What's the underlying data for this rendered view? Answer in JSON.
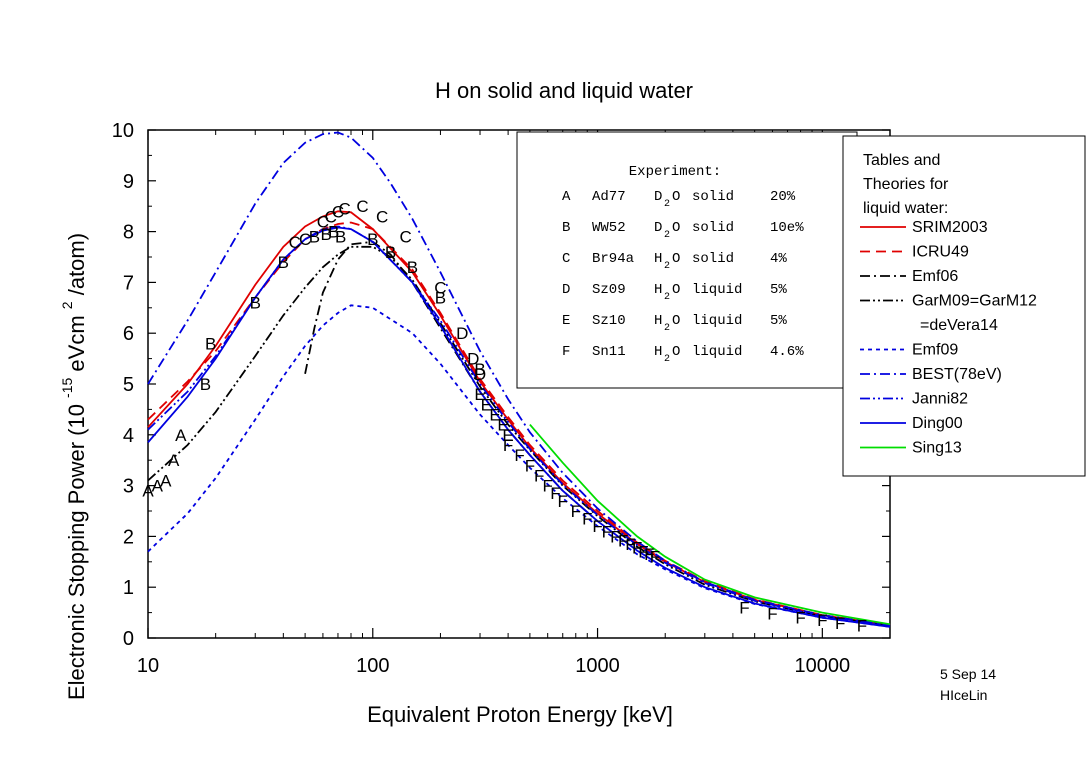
{
  "chart_data": {
    "type": "line",
    "title": "H on solid and liquid water",
    "xlabel": "Equivalent Proton Energy [keV]",
    "ylabel_main": "Electronic Stopping Power (10",
    "ylabel_exp": "-15",
    "ylabel_unit": "eVcm",
    "ylabel_exp2": "2",
    "ylabel_end": "/atom)",
    "xscale": "log",
    "xlim": [
      10,
      20000
    ],
    "ylim": [
      0,
      10
    ],
    "xticks": [
      {
        "value": 10,
        "label": "10"
      },
      {
        "value": 100,
        "label": "100"
      },
      {
        "value": 1000,
        "label": "1000"
      },
      {
        "value": 10000,
        "label": "10000"
      }
    ],
    "yticks": [
      {
        "value": 0,
        "label": "0"
      },
      {
        "value": 1,
        "label": "1"
      },
      {
        "value": 2,
        "label": "2"
      },
      {
        "value": 3,
        "label": "3"
      },
      {
        "value": 4,
        "label": "4"
      },
      {
        "value": 5,
        "label": "5"
      },
      {
        "value": 6,
        "label": "6"
      },
      {
        "value": 7,
        "label": "7"
      },
      {
        "value": 8,
        "label": "8"
      },
      {
        "value": 9,
        "label": "9"
      },
      {
        "value": 10,
        "label": "10"
      }
    ],
    "footer_date": "5 Sep 14",
    "footer_name": "HIceLin",
    "experiment_table": {
      "header": "Experiment:",
      "rows": [
        {
          "key": "A",
          "ref": "Ad77",
          "mol": "D",
          "sub": "2",
          "mol2": "O",
          "phase": "solid",
          "err": "20%"
        },
        {
          "key": "B",
          "ref": "WW52",
          "mol": "D",
          "sub": "2",
          "mol2": "O",
          "phase": "solid",
          "err": "10e%"
        },
        {
          "key": "C",
          "ref": "Br94a",
          "mol": "H",
          "sub": "2",
          "mol2": "O",
          "phase": "solid",
          "err": "4%"
        },
        {
          "key": "D",
          "ref": "Sz09",
          "mol": "H",
          "sub": "2",
          "mol2": "O",
          "phase": "liquid",
          "err": "5%"
        },
        {
          "key": "E",
          "ref": "Sz10",
          "mol": "H",
          "sub": "2",
          "mol2": "O",
          "phase": "liquid",
          "err": "5%"
        },
        {
          "key": "F",
          "ref": "Sn11",
          "mol": "H",
          "sub": "2",
          "mol2": "O",
          "phase": "liquid",
          "err": "4.6%"
        }
      ]
    },
    "legend_title": [
      "Tables and",
      "Theories for",
      "liquid water:"
    ],
    "legend_placement": "right",
    "series": [
      {
        "name": "SRIM2003",
        "color": "#e00000",
        "dash": "solid",
        "x": [
          10,
          15,
          20,
          30,
          40,
          50,
          60,
          70,
          80,
          100,
          150,
          200,
          300,
          400,
          500,
          700,
          1000,
          1500,
          2000,
          3000,
          5000,
          10000,
          20000
        ],
        "y": [
          4.15,
          5.0,
          5.75,
          6.95,
          7.7,
          8.1,
          8.3,
          8.4,
          8.38,
          8.05,
          7.2,
          6.35,
          5.05,
          4.3,
          3.75,
          3.05,
          2.45,
          1.85,
          1.5,
          1.1,
          0.75,
          0.45,
          0.25
        ]
      },
      {
        "name": "ICRU49",
        "color": "#e00000",
        "dash": "dashed",
        "x": [
          10,
          15,
          20,
          30,
          40,
          50,
          60,
          70,
          80,
          100,
          150,
          200,
          300,
          400,
          500,
          700,
          1000,
          1500,
          2000,
          3000,
          5000,
          10000,
          20000
        ],
        "y": [
          4.3,
          5.05,
          5.65,
          6.7,
          7.4,
          7.85,
          8.05,
          8.15,
          8.18,
          8.05,
          7.25,
          6.4,
          5.1,
          4.35,
          3.8,
          3.1,
          2.5,
          1.88,
          1.52,
          1.12,
          0.76,
          0.45,
          0.25
        ]
      },
      {
        "name": "Emf06",
        "color": "#000000",
        "dash": "dashdot",
        "x": [
          50,
          55,
          60,
          70,
          80,
          100,
          120,
          150,
          200,
          300,
          400,
          500,
          700,
          1000
        ],
        "y": [
          5.2,
          6.1,
          6.8,
          7.45,
          7.75,
          7.8,
          7.55,
          7.0,
          6.1,
          4.85,
          4.1,
          3.6,
          2.9,
          2.3
        ]
      },
      {
        "name": "GarM09=GarM12",
        "color": "#000000",
        "dash": "dashdotdot",
        "x": [
          10,
          15,
          20,
          30,
          40,
          50,
          60,
          70,
          80,
          100,
          120,
          150,
          200,
          300,
          400,
          500,
          700,
          1000,
          1500,
          2000,
          3000,
          5000,
          10000,
          20000
        ],
        "y": [
          3.1,
          3.8,
          4.45,
          5.55,
          6.35,
          6.9,
          7.3,
          7.55,
          7.7,
          7.7,
          7.5,
          7.05,
          6.2,
          4.95,
          4.2,
          3.7,
          3.0,
          2.4,
          1.8,
          1.45,
          1.05,
          0.72,
          0.43,
          0.24
        ]
      },
      {
        "name": "Emf09",
        "color": "#0000e0",
        "dash": "dotted",
        "x": [
          10,
          15,
          20,
          30,
          40,
          50,
          60,
          70,
          80,
          100,
          150,
          200,
          300,
          400,
          500,
          700,
          1000,
          1500,
          2000,
          3000,
          5000,
          10000,
          20000
        ],
        "y": [
          1.7,
          2.45,
          3.15,
          4.3,
          5.15,
          5.75,
          6.15,
          6.4,
          6.55,
          6.5,
          6.0,
          5.4,
          4.4,
          3.8,
          3.35,
          2.75,
          2.2,
          1.65,
          1.35,
          0.98,
          0.67,
          0.4,
          0.22
        ]
      },
      {
        "name": "BEST(78eV)",
        "color": "#0000e0",
        "dash": "dashdot",
        "x": [
          10,
          15,
          20,
          30,
          40,
          50,
          60,
          70,
          80,
          100,
          120,
          150,
          200,
          300,
          400,
          500,
          700,
          1000,
          1500,
          2000,
          3000,
          5000,
          10000,
          20000
        ],
        "y": [
          5.0,
          6.25,
          7.2,
          8.55,
          9.35,
          9.75,
          9.92,
          9.95,
          9.85,
          9.45,
          8.95,
          8.25,
          7.2,
          5.65,
          4.7,
          4.05,
          3.25,
          2.55,
          1.9,
          1.52,
          1.1,
          0.75,
          0.45,
          0.25
        ]
      },
      {
        "name": "Janni82",
        "color": "#0000e0",
        "dash": "dashdotdot",
        "x": [
          10,
          15,
          20,
          30,
          40,
          50,
          60,
          70,
          80,
          100,
          150,
          200,
          300,
          400,
          500,
          700,
          1000,
          1500,
          2000,
          3000,
          5000,
          10000,
          20000
        ],
        "y": [
          4.1,
          4.85,
          5.55,
          6.7,
          7.45,
          7.85,
          8.05,
          8.1,
          8.05,
          7.8,
          7.0,
          6.25,
          5.0,
          4.25,
          3.72,
          3.02,
          2.42,
          1.83,
          1.48,
          1.08,
          0.73,
          0.43,
          0.24
        ]
      },
      {
        "name": "Ding00",
        "color": "#0000e0",
        "dash": "solid",
        "x": [
          10,
          15,
          20,
          30,
          40,
          50,
          60,
          70,
          80,
          100,
          150,
          200,
          300,
          400,
          500,
          700,
          1000,
          1500,
          2000,
          3000,
          5000,
          10000,
          20000
        ],
        "y": [
          3.85,
          4.75,
          5.5,
          6.7,
          7.45,
          7.85,
          8.02,
          8.08,
          8.05,
          7.8,
          7.0,
          6.15,
          4.85,
          4.1,
          3.6,
          2.9,
          2.3,
          1.72,
          1.38,
          1.0,
          0.68,
          0.4,
          0.22
        ]
      },
      {
        "name": "Sing13",
        "color": "#00dd00",
        "dash": "solid",
        "x": [
          500,
          700,
          1000,
          1500,
          2000,
          3000,
          5000,
          10000,
          20000
        ],
        "y": [
          4.2,
          3.45,
          2.7,
          2.0,
          1.6,
          1.15,
          0.8,
          0.5,
          0.27
        ]
      }
    ],
    "legend_labels": {
      "SRIM2003": "SRIM2003",
      "ICRU49": "ICRU49",
      "Emf06": "Emf06",
      "GarM09=GarM12": "GarM09=GarM12",
      "GarM_second_line": "=deVera14",
      "Emf09": "Emf09",
      "BEST(78eV)": "BEST(78eV)",
      "Janni82": "Janni82",
      "Ding00": "Ding00",
      "Sing13": "Sing13"
    },
    "points": {
      "A": {
        "x": [
          10,
          11,
          12,
          13,
          14
        ],
        "y": [
          2.9,
          3.0,
          3.1,
          3.5,
          4.0
        ]
      },
      "B": {
        "x": [
          18,
          19,
          30,
          40,
          55,
          62,
          67,
          72,
          100,
          120,
          150,
          200,
          300
        ],
        "y": [
          5.0,
          5.8,
          6.6,
          7.4,
          7.9,
          7.95,
          8.0,
          7.9,
          7.85,
          7.6,
          7.3,
          6.7,
          5.3
        ]
      },
      "C": {
        "x": [
          45,
          50,
          60,
          65,
          70,
          75,
          90,
          110,
          140,
          200
        ],
        "y": [
          7.8,
          7.85,
          8.2,
          8.3,
          8.4,
          8.45,
          8.5,
          8.3,
          7.9,
          6.9
        ]
      },
      "D": {
        "x": [
          250,
          280,
          300
        ],
        "y": [
          6.0,
          5.5,
          5.2
        ]
      },
      "E": {
        "x": [
          300,
          320,
          350,
          380,
          400
        ],
        "y": [
          4.8,
          4.6,
          4.4,
          4.2,
          4.0
        ]
      },
      "F": {
        "x": [
          400,
          450,
          500,
          550,
          600,
          650,
          700,
          800,
          900,
          1000,
          1100,
          1200,
          1300,
          1400,
          1500,
          1600,
          1700,
          1800,
          4500,
          6000,
          8000,
          10000,
          12000,
          15000
        ],
        "y": [
          3.8,
          3.6,
          3.4,
          3.2,
          3.0,
          2.85,
          2.7,
          2.5,
          2.35,
          2.2,
          2.1,
          2.0,
          1.92,
          1.85,
          1.78,
          1.7,
          1.65,
          1.6,
          0.6,
          0.48,
          0.4,
          0.35,
          0.3,
          0.25
        ]
      }
    }
  }
}
